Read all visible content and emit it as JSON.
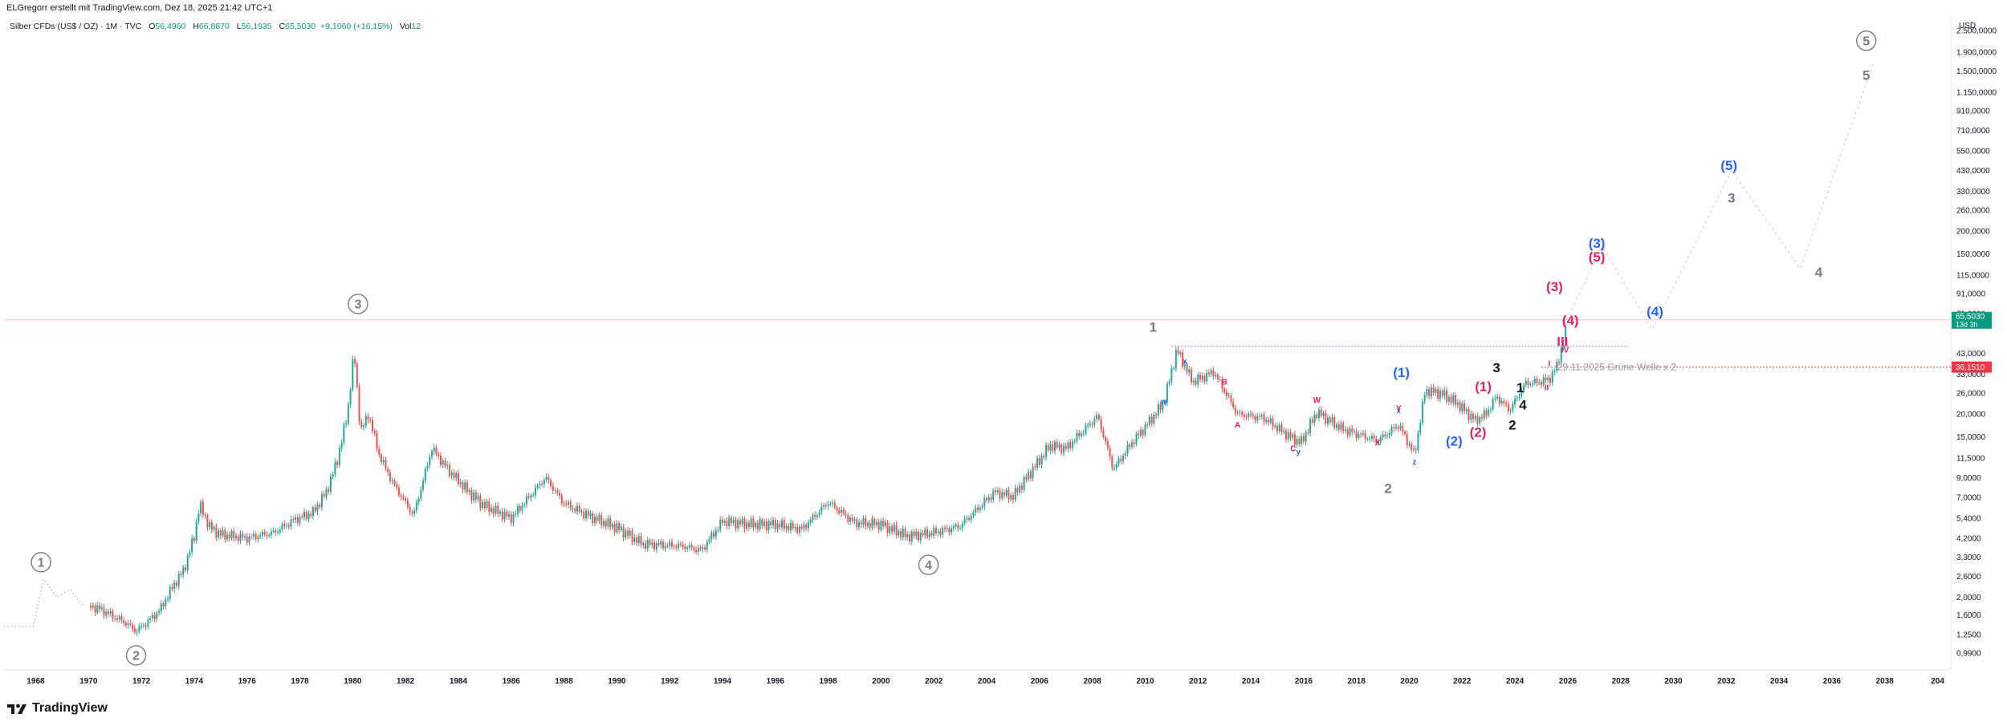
{
  "credit": "ELGregorr erstellt mit TradingView.com, Dez 18, 2025 21:42 UTC+1",
  "legend": {
    "symbol": "Silber CFDs (US$ / OZ) · 1M · TVC",
    "open_label": "O",
    "open": "56,4960",
    "high_label": "H",
    "high": "66,8870",
    "low_label": "L",
    "low": "56,1935",
    "close_label": "C",
    "close": "65,5030",
    "change": "+9,1060 (+16,15%)",
    "vol_label": "Vol",
    "vol": "12"
  },
  "currency": "USD",
  "logo_text": "TradingView",
  "colors": {
    "up": "#26a69a",
    "down": "#ef5350",
    "wave_grey": "#787b86",
    "wave_blue": "#2962ff",
    "wave_pink": "#e91e63",
    "price_badge": "#089981",
    "level_badge": "#f23645",
    "level_line": "#f7525f"
  },
  "chart_data": {
    "type": "candlestick",
    "y_scale": "log",
    "ylim": [
      0.8,
      3000
    ],
    "xlim": [
      1966.8,
      2040.5
    ],
    "y_ticks": [
      "2.500,0000",
      "1.900,0000",
      "1.500,0000",
      "1.150,0000",
      "910,0000",
      "710,0000",
      "550,0000",
      "430,0000",
      "330,0000",
      "260,0000",
      "200,0000",
      "150,0000",
      "115,0000",
      "91,0000",
      "71,0000",
      "43,0000",
      "33,0000",
      "26,0000",
      "20,0000",
      "15,0000",
      "11,5000",
      "9,0000",
      "7,0000",
      "5,4000",
      "4,2000",
      "3,3000",
      "2,6000",
      "2,0000",
      "1,6000",
      "1,2500",
      "0,9900"
    ],
    "x_ticks": [
      "1968",
      "1970",
      "1972",
      "1974",
      "1976",
      "1978",
      "1980",
      "1982",
      "1984",
      "1986",
      "1988",
      "1990",
      "1992",
      "1994",
      "1996",
      "1998",
      "2000",
      "2002",
      "2004",
      "2006",
      "2008",
      "2010",
      "2012",
      "2014",
      "2016",
      "2018",
      "2020",
      "2022",
      "2024",
      "2026",
      "2028",
      "2030",
      "2032",
      "2034",
      "2036",
      "2038",
      "204"
    ],
    "last_price": {
      "value": 65.503,
      "label": "65,5030",
      "countdown": "13d 3h"
    },
    "level": {
      "value": 36.151,
      "label": "36,1510"
    },
    "path": [
      [
        1970.0,
        1.8
      ],
      [
        1970.5,
        1.7
      ],
      [
        1971.0,
        1.55
      ],
      [
        1971.4,
        1.45
      ],
      [
        1971.8,
        1.3
      ],
      [
        1972.2,
        1.45
      ],
      [
        1972.7,
        1.7
      ],
      [
        1973.2,
        2.3
      ],
      [
        1973.6,
        2.8
      ],
      [
        1974.0,
        4.3
      ],
      [
        1974.2,
        6.4
      ],
      [
        1974.6,
        4.8
      ],
      [
        1975.0,
        4.4
      ],
      [
        1976.0,
        4.2
      ],
      [
        1977.0,
        4.5
      ],
      [
        1977.8,
        5.3
      ],
      [
        1978.5,
        5.8
      ],
      [
        1979.0,
        7.5
      ],
      [
        1979.4,
        11.0
      ],
      [
        1979.8,
        20.0
      ],
      [
        1980.05,
        44.0
      ],
      [
        1980.3,
        16.0
      ],
      [
        1980.6,
        20.0
      ],
      [
        1981.0,
        12.0
      ],
      [
        1981.5,
        8.5
      ],
      [
        1982.3,
        5.6
      ],
      [
        1983.0,
        13.0
      ],
      [
        1983.6,
        10.0
      ],
      [
        1984.4,
        7.5
      ],
      [
        1985.0,
        6.3
      ],
      [
        1986.0,
        5.4
      ],
      [
        1987.3,
        9.0
      ],
      [
        1988.0,
        6.5
      ],
      [
        1989.0,
        5.5
      ],
      [
        1990.0,
        4.8
      ],
      [
        1991.0,
        3.9
      ],
      [
        1992.5,
        3.8
      ],
      [
        1993.2,
        3.6
      ],
      [
        1994.0,
        5.2
      ],
      [
        1995.0,
        5.0
      ],
      [
        1996.0,
        5.0
      ],
      [
        1997.0,
        4.7
      ],
      [
        1998.0,
        6.6
      ],
      [
        1999.0,
        5.1
      ],
      [
        2000.0,
        5.0
      ],
      [
        2001.0,
        4.3
      ],
      [
        2002.0,
        4.5
      ],
      [
        2003.0,
        4.9
      ],
      [
        2004.3,
        7.5
      ],
      [
        2005.0,
        7.1
      ],
      [
        2006.4,
        13.5
      ],
      [
        2007.0,
        13.0
      ],
      [
        2008.2,
        19.5
      ],
      [
        2008.8,
        10.0
      ],
      [
        2009.5,
        14.0
      ],
      [
        2010.0,
        17.0
      ],
      [
        2010.7,
        23.0
      ],
      [
        2011.2,
        45.0
      ],
      [
        2011.8,
        30.0
      ],
      [
        2012.6,
        34.0
      ],
      [
        2013.5,
        20.0
      ],
      [
        2014.5,
        19.0
      ],
      [
        2015.5,
        15.0
      ],
      [
        2015.9,
        14.0
      ],
      [
        2016.5,
        20.5
      ],
      [
        2017.5,
        16.5
      ],
      [
        2018.8,
        14.3
      ],
      [
        2019.6,
        17.5
      ],
      [
        2020.2,
        12.0
      ],
      [
        2020.6,
        27.0
      ],
      [
        2021.2,
        26.0
      ],
      [
        2021.8,
        23.0
      ],
      [
        2022.5,
        18.5
      ],
      [
        2022.9,
        20.0
      ],
      [
        2023.3,
        25.0
      ],
      [
        2023.8,
        21.0
      ],
      [
        2024.4,
        29.5
      ],
      [
        2024.9,
        30.0
      ],
      [
        2025.3,
        31.0
      ],
      [
        2025.6,
        37.0
      ],
      [
        2025.8,
        49.0
      ],
      [
        2025.9,
        52.0
      ],
      [
        2025.95,
        65.5
      ]
    ],
    "projection": [
      [
        2025.95,
        65.5
      ],
      [
        2027.3,
        165.0
      ],
      [
        2029.2,
        58.0
      ],
      [
        2032.2,
        430.0
      ],
      [
        2034.8,
        125.0
      ],
      [
        2037.6,
        1700.0
      ]
    ],
    "wave_labels": [
      {
        "text": "1",
        "x": 1968.2,
        "y": 3.1,
        "color": "grey",
        "circled": true
      },
      {
        "text": "2",
        "x": 1971.8,
        "y": 0.96,
        "color": "grey",
        "circled": true
      },
      {
        "text": "3",
        "x": 1980.2,
        "y": 80.0,
        "color": "grey",
        "circled": true
      },
      {
        "text": "4",
        "x": 2001.8,
        "y": 3.0,
        "color": "grey",
        "circled": true
      },
      {
        "text": "5",
        "x": 2037.3,
        "y": 2200.0,
        "color": "grey",
        "circled": true
      },
      {
        "text": "1",
        "x": 2010.3,
        "y": 60.0,
        "color": "grey",
        "circled": false
      },
      {
        "text": "2",
        "x": 2019.2,
        "y": 7.9,
        "color": "grey",
        "circled": false
      },
      {
        "text": "3",
        "x": 2023.3,
        "y": 36.0,
        "color": "dark",
        "circled": false
      },
      {
        "text": "4",
        "x": 2024.3,
        "y": 22.5,
        "color": "dark",
        "circled": false
      },
      {
        "text": "1",
        "x": 2024.2,
        "y": 28.0,
        "color": "dark",
        "circled": false
      },
      {
        "text": "2",
        "x": 2023.9,
        "y": 17.5,
        "color": "dark",
        "circled": false
      },
      {
        "text": "3",
        "x": 2032.2,
        "y": 305.0,
        "color": "grey",
        "circled": false
      },
      {
        "text": "4",
        "x": 2035.5,
        "y": 120.0,
        "color": "grey",
        "circled": false
      },
      {
        "text": "5",
        "x": 2037.3,
        "y": 1430.0,
        "color": "grey",
        "circled": false
      },
      {
        "text": "(1)",
        "x": 2019.7,
        "y": 34.0,
        "color": "blue",
        "circled": false
      },
      {
        "text": "(2)",
        "x": 2021.7,
        "y": 14.3,
        "color": "blue",
        "circled": false
      },
      {
        "text": "(3)",
        "x": 2027.1,
        "y": 172.0,
        "color": "blue",
        "circled": false
      },
      {
        "text": "(4)",
        "x": 2029.3,
        "y": 73.0,
        "color": "blue",
        "circled": false
      },
      {
        "text": "(5)",
        "x": 2032.1,
        "y": 460.0,
        "color": "blue",
        "circled": false
      },
      {
        "text": "(1)",
        "x": 2022.8,
        "y": 28.5,
        "color": "pink",
        "circled": false
      },
      {
        "text": "(2)",
        "x": 2022.6,
        "y": 16.0,
        "color": "pink",
        "circled": false
      },
      {
        "text": "(3)",
        "x": 2025.5,
        "y": 100.0,
        "color": "pink",
        "circled": false
      },
      {
        "text": "(4)",
        "x": 2026.1,
        "y": 65.5,
        "color": "pink",
        "circled": false
      },
      {
        "text": "(5)",
        "x": 2027.1,
        "y": 145.0,
        "color": "pink",
        "circled": false
      },
      {
        "text": "w",
        "x": 2010.7,
        "y": 23.5,
        "color": "blue",
        "circled": false
      },
      {
        "text": "x",
        "x": 2011.5,
        "y": 39.0,
        "color": "blue",
        "circled": false
      },
      {
        "text": "y",
        "x": 2015.8,
        "y": 12.5,
        "color": "blue",
        "circled": false
      },
      {
        "text": "z",
        "x": 2020.2,
        "y": 11.0,
        "color": "blue",
        "circled": false
      },
      {
        "text": "x",
        "x": 2019.6,
        "y": 21.0,
        "color": "blue",
        "circled": false
      },
      {
        "text": "A",
        "x": 2013.5,
        "y": 17.5,
        "color": "pink",
        "circled": false
      },
      {
        "text": "B",
        "x": 2013.0,
        "y": 30.0,
        "color": "pink",
        "circled": false
      },
      {
        "text": "C",
        "x": 2015.6,
        "y": 13.0,
        "color": "pink",
        "circled": false
      },
      {
        "text": "W",
        "x": 2016.5,
        "y": 24.0,
        "color": "pink",
        "circled": false
      },
      {
        "text": "X",
        "x": 2018.8,
        "y": 14.0,
        "color": "pink",
        "circled": false
      },
      {
        "text": "Y",
        "x": 2019.6,
        "y": 21.5,
        "color": "pink",
        "circled": false
      },
      {
        "text": "I",
        "x": 2025.3,
        "y": 38.0,
        "color": "pink",
        "circled": false
      },
      {
        "text": "II",
        "x": 2025.2,
        "y": 28.0,
        "color": "pink",
        "circled": false
      },
      {
        "text": "III",
        "x": 2025.8,
        "y": 50.0,
        "color": "pink",
        "circled": false
      },
      {
        "text": "IV",
        "x": 2025.9,
        "y": 45.0,
        "color": "pink",
        "circled": false
      }
    ],
    "annotations": [
      {
        "text": "29.11.2025 Grüne Welle x 2",
        "x": 2025.6,
        "y": 36.2,
        "color": "grey"
      }
    ]
  }
}
